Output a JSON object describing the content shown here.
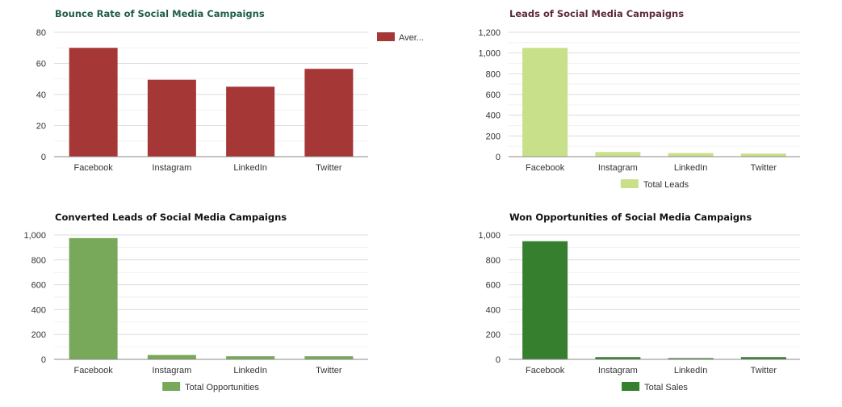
{
  "chart_data": [
    {
      "type": "bar",
      "title": "Bounce Rate of Social Media Campaigns",
      "title_color": "#1e5c4a",
      "categories": [
        "Facebook",
        "Instagram",
        "LinkedIn",
        "Twitter"
      ],
      "series": [
        {
          "name": "Aver...",
          "values": [
            70,
            49.5,
            45,
            56.5
          ],
          "color": "#a63737"
        }
      ],
      "ylim": [
        0,
        80
      ],
      "yticks": [
        0,
        20,
        40,
        60,
        80
      ],
      "ytick_labels": [
        "0",
        "20",
        "40",
        "60",
        "80"
      ],
      "xlabel": "",
      "ylabel": "",
      "legend_position": "right",
      "grid": true
    },
    {
      "type": "bar",
      "title": "Leads of Social Media Campaigns",
      "title_color": "#5e2a3a",
      "categories": [
        "Facebook",
        "Instagram",
        "LinkedIn",
        "Twitter"
      ],
      "series": [
        {
          "name": "Total Leads",
          "values": [
            1050,
            45,
            35,
            30
          ],
          "color": "#c8e08a"
        }
      ],
      "ylim": [
        0,
        1200
      ],
      "yticks": [
        0,
        200,
        400,
        600,
        800,
        1000,
        1200
      ],
      "ytick_labels": [
        "0",
        "200",
        "400",
        "600",
        "800",
        "1,000",
        "1,200"
      ],
      "xlabel": "",
      "ylabel": "",
      "legend_position": "bottom",
      "grid": true
    },
    {
      "type": "bar",
      "title": "Converted Leads of Social Media Campaigns",
      "title_color": "#111111",
      "categories": [
        "Facebook",
        "Instagram",
        "LinkedIn",
        "Twitter"
      ],
      "series": [
        {
          "name": "Total Opportunities",
          "values": [
            975,
            35,
            25,
            25
          ],
          "color": "#78a95a"
        }
      ],
      "ylim": [
        0,
        1000
      ],
      "yticks": [
        0,
        200,
        400,
        600,
        800,
        1000
      ],
      "ytick_labels": [
        "0",
        "200",
        "400",
        "600",
        "800",
        "1,000"
      ],
      "xlabel": "",
      "ylabel": "",
      "legend_position": "bottom",
      "grid": true
    },
    {
      "type": "bar",
      "title": "Won Opportunities of Social Media Campaigns",
      "title_color": "#111111",
      "categories": [
        "Facebook",
        "Instagram",
        "LinkedIn",
        "Twitter"
      ],
      "series": [
        {
          "name": "Total Sales",
          "values": [
            950,
            18,
            10,
            18
          ],
          "color": "#367f2e"
        }
      ],
      "ylim": [
        0,
        1000
      ],
      "yticks": [
        0,
        200,
        400,
        600,
        800,
        1000
      ],
      "ytick_labels": [
        "0",
        "200",
        "400",
        "600",
        "800",
        "1,000"
      ],
      "xlabel": "",
      "ylabel": "",
      "legend_position": "bottom",
      "grid": true
    }
  ]
}
